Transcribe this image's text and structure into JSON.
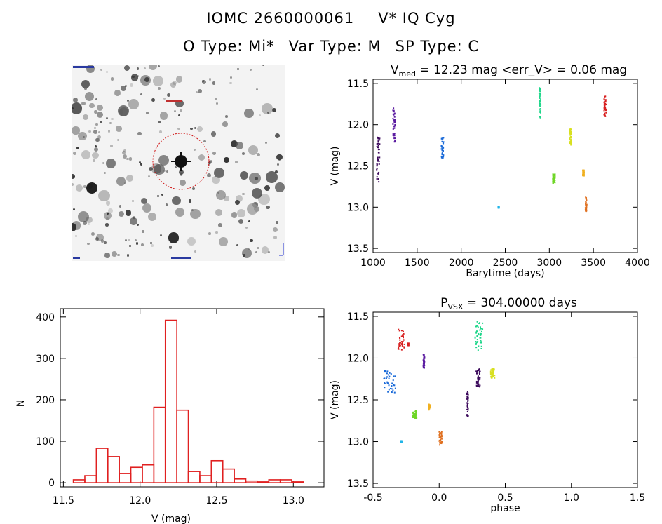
{
  "header": {
    "line1_name": "IOMC 2660000061",
    "line1_star": "V* IQ Cyg",
    "line2_otype": "O Type: Mi*",
    "line2_vartype": "Var Type: M",
    "line2_sptype": "SP Type: C"
  },
  "image_panel": {
    "target_marker": "red-dashed-circle",
    "scale_marker": "blue-bar"
  },
  "chart_data": [
    {
      "type": "scatter",
      "title_prefix": "V",
      "title_sub": "med",
      "title_rest": " = 12.23 mag <err_V> = 0.06 mag",
      "xlabel": "Barytime (days)",
      "ylabel": "V (mag)",
      "xlim": [
        1000,
        4000
      ],
      "ylim": [
        13.55,
        11.45
      ],
      "xticks": [
        1000,
        1500,
        2000,
        2500,
        3000,
        3500,
        4000
      ],
      "yticks": [
        11.5,
        12.0,
        12.5,
        13.0,
        13.5
      ],
      "ytick_labels": [
        "11.5",
        "12.0",
        "12.5",
        "13.0",
        "13.5"
      ],
      "series": [
        {
          "color": "#3c0a5c",
          "x_range": [
            1040,
            1075
          ],
          "v_range": [
            12.15,
            12.7
          ]
        },
        {
          "color": "#5a1aa0",
          "x_range": [
            1225,
            1250
          ],
          "v_range": [
            11.8,
            12.22
          ]
        },
        {
          "color": "#1a6ad8",
          "x_range": [
            1775,
            1800
          ],
          "v_range": [
            12.15,
            12.42
          ]
        },
        {
          "color": "#21b5e8",
          "x_range": [
            2420,
            2430
          ],
          "v_range": [
            12.99,
            13.01
          ]
        },
        {
          "color": "#1ed68a",
          "x_range": [
            2885,
            2905
          ],
          "v_range": [
            11.55,
            11.92
          ]
        },
        {
          "color": "#6ed626",
          "x_range": [
            3040,
            3065
          ],
          "v_range": [
            12.6,
            12.72
          ]
        },
        {
          "color": "#d8e020",
          "x_range": [
            3230,
            3250
          ],
          "v_range": [
            12.05,
            12.25
          ]
        },
        {
          "color": "#f0b020",
          "x_range": [
            3380,
            3395
          ],
          "v_range": [
            12.55,
            12.62
          ]
        },
        {
          "color": "#e07020",
          "x_range": [
            3410,
            3425
          ],
          "v_range": [
            12.88,
            13.05
          ]
        },
        {
          "color": "#d82020",
          "x_range": [
            3620,
            3645
          ],
          "v_range": [
            11.65,
            11.9
          ]
        }
      ]
    },
    {
      "type": "bar",
      "xlabel": "V (mag)",
      "ylabel": "N",
      "xlim": [
        11.48,
        13.2
      ],
      "ylim": [
        -10,
        420
      ],
      "xticks": [
        11.5,
        12.0,
        12.5,
        13.0
      ],
      "xtick_labels": [
        "11.5",
        "12.0",
        "12.5",
        "13.0"
      ],
      "yticks": [
        0,
        100,
        200,
        300,
        400
      ],
      "bin_width": 0.075,
      "bin_starts": [
        11.565,
        11.64,
        11.715,
        11.79,
        11.865,
        11.94,
        12.015,
        12.09,
        12.165,
        12.24,
        12.315,
        12.39,
        12.465,
        12.54,
        12.615,
        12.69,
        12.765,
        12.84,
        12.915,
        12.99,
        13.065
      ],
      "values": [
        7,
        17,
        83,
        63,
        22,
        37,
        43,
        182,
        392,
        175,
        27,
        17,
        53,
        33,
        9,
        4,
        2,
        7,
        7,
        2,
        0
      ],
      "bar_color": "#e02020"
    },
    {
      "type": "scatter",
      "title_prefix": "P",
      "title_sub": "VSX",
      "title_rest": " = 304.00000 days",
      "xlabel": "phase",
      "ylabel": "V (mag)",
      "xlim": [
        -0.5,
        1.5
      ],
      "ylim": [
        13.55,
        11.45
      ],
      "xticks": [
        -0.5,
        0.0,
        0.5,
        1.0,
        1.5
      ],
      "xtick_labels": [
        "-0.5",
        "0.0",
        "0.5",
        "1.0",
        "1.5"
      ],
      "yticks": [
        11.5,
        12.0,
        12.5,
        13.0,
        13.5
      ],
      "ytick_labels": [
        "11.5",
        "12.0",
        "12.5",
        "13.0",
        "13.5"
      ],
      "series": [
        {
          "color": "#3c0a5c",
          "phase_range": [
            0.21,
            0.22
          ],
          "v_range": [
            12.4,
            12.7
          ]
        },
        {
          "color": "#3c0a5c",
          "phase_range": [
            0.28,
            0.31
          ],
          "v_range": [
            12.12,
            12.35
          ]
        },
        {
          "color": "#5a1aa0",
          "phase_range": [
            -0.12,
            -0.11
          ],
          "v_range": [
            11.95,
            12.12
          ]
        },
        {
          "color": "#1a6ad8",
          "phase_range": [
            -0.42,
            -0.33
          ],
          "v_range": [
            12.15,
            12.42
          ]
        },
        {
          "color": "#21b5e8",
          "phase_range": [
            -0.29,
            -0.28
          ],
          "v_range": [
            12.99,
            13.01
          ]
        },
        {
          "color": "#1ed68a",
          "phase_range": [
            0.27,
            0.33
          ],
          "v_range": [
            11.55,
            11.92
          ]
        },
        {
          "color": "#6ed626",
          "phase_range": [
            -0.2,
            -0.17
          ],
          "v_range": [
            12.62,
            12.72
          ]
        },
        {
          "color": "#d8e020",
          "phase_range": [
            0.39,
            0.42
          ],
          "v_range": [
            12.12,
            12.25
          ]
        },
        {
          "color": "#f0b020",
          "phase_range": [
            -0.08,
            -0.07
          ],
          "v_range": [
            12.55,
            12.62
          ]
        },
        {
          "color": "#e07020",
          "phase_range": [
            0.0,
            0.02
          ],
          "v_range": [
            12.88,
            13.05
          ]
        },
        {
          "color": "#d82020",
          "phase_range": [
            -0.31,
            -0.26
          ],
          "v_range": [
            11.65,
            11.92
          ]
        },
        {
          "color": "#d82020",
          "phase_range": [
            -0.24,
            -0.23
          ],
          "v_range": [
            11.82,
            11.85
          ]
        }
      ]
    }
  ]
}
